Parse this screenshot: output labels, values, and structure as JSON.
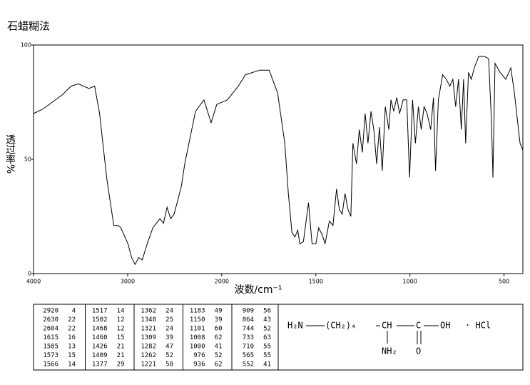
{
  "chart_data": {
    "type": "line",
    "title": "石蜡糊法",
    "x_label": "波数/cm⁻¹",
    "y_label": "透过率%",
    "xlim": [
      4000,
      400
    ],
    "xticks": [
      4000,
      3000,
      2000,
      1500,
      1000,
      500
    ],
    "xscale": "tick-spaced",
    "ylim": [
      0,
      100
    ],
    "yticks": [
      0,
      50,
      100
    ],
    "grid": false,
    "series": [
      {
        "color": "#000000",
        "x": [
          4000,
          3900,
          3800,
          3700,
          3600,
          3525,
          3411,
          3351,
          3298,
          3223,
          3147,
          3100,
          3072,
          2996,
          2958,
          2921,
          2883,
          2845,
          2792,
          2732,
          2657,
          2619,
          2581,
          2543,
          2506,
          2468,
          2430,
          2393,
          2279,
          2189,
          2113,
          2053,
          1970,
          1912,
          1874,
          1798,
          1748,
          1703,
          1665,
          1646,
          1627,
          1611,
          1596,
          1585,
          1566,
          1539,
          1520,
          1500,
          1485,
          1466,
          1451,
          1428,
          1409,
          1390,
          1375,
          1360,
          1345,
          1329,
          1314,
          1303,
          1284,
          1269,
          1253,
          1238,
          1223,
          1207,
          1192,
          1177,
          1162,
          1147,
          1131,
          1112,
          1101,
          1086,
          1070,
          1055,
          1036,
          1017,
          1002,
          986,
          971,
          955,
          940,
          925,
          909,
          890,
          875,
          864,
          849,
          826,
          807,
          788,
          772,
          757,
          742,
          727,
          715,
          704,
          689,
          674,
          658,
          635,
          604,
          582,
          567,
          559,
          548,
          521,
          491,
          464,
          445,
          415,
          400
        ],
        "values": [
          70,
          72,
          75,
          78,
          82,
          83,
          81,
          82,
          70,
          42,
          21,
          21,
          20,
          13,
          7,
          4,
          7,
          6,
          13,
          20,
          24,
          22,
          29,
          24,
          26,
          32,
          38,
          48,
          71,
          76,
          66,
          74,
          76,
          82,
          87,
          89,
          89,
          79,
          57,
          35,
          18,
          16,
          19,
          13,
          14,
          31,
          13,
          13,
          20,
          17,
          13,
          23,
          21,
          37,
          28,
          26,
          35,
          28,
          25,
          57,
          48,
          63,
          53,
          70,
          57,
          71,
          63,
          48,
          64,
          45,
          73,
          63,
          76,
          71,
          77,
          70,
          76,
          76,
          42,
          76,
          57,
          73,
          63,
          73,
          70,
          63,
          77,
          45,
          76,
          87,
          85,
          82,
          85,
          73,
          85,
          63,
          85,
          57,
          88,
          85,
          90,
          95,
          95,
          94,
          67,
          42,
          92,
          88,
          85,
          90,
          79,
          57,
          54
        ]
      }
    ]
  },
  "peak_table": [
    [
      [
        2920,
        4
      ],
      [
        2630,
        22
      ],
      [
        2604,
        22
      ],
      [
        1615,
        16
      ],
      [
        1585,
        13
      ],
      [
        1573,
        15
      ],
      [
        1566,
        14
      ]
    ],
    [
      [
        1517,
        14
      ],
      [
        1502,
        12
      ],
      [
        1468,
        12
      ],
      [
        1460,
        15
      ],
      [
        1426,
        21
      ],
      [
        1409,
        21
      ],
      [
        1377,
        29
      ]
    ],
    [
      [
        1362,
        24
      ],
      [
        1348,
        25
      ],
      [
        1321,
        24
      ],
      [
        1309,
        39
      ],
      [
        1282,
        47
      ],
      [
        1262,
        52
      ],
      [
        1221,
        58
      ]
    ],
    [
      [
        1183,
        49
      ],
      [
        1150,
        39
      ],
      [
        1101,
        60
      ],
      [
        1008,
        62
      ],
      [
        1000,
        41
      ],
      [
        976,
        52
      ],
      [
        936,
        62
      ]
    ],
    [
      [
        909,
        56
      ],
      [
        864,
        43
      ],
      [
        744,
        52
      ],
      [
        733,
        63
      ],
      [
        710,
        55
      ],
      [
        565,
        55
      ],
      [
        552,
        41
      ]
    ]
  ],
  "structure": {
    "amine": "H₂N",
    "chain": "(CH₂)₄",
    "ch": "CH",
    "carbon": "C",
    "hydroxyl": "OH",
    "salt": "· HCl",
    "side_amine": "NH₂",
    "oxygen": "O"
  }
}
